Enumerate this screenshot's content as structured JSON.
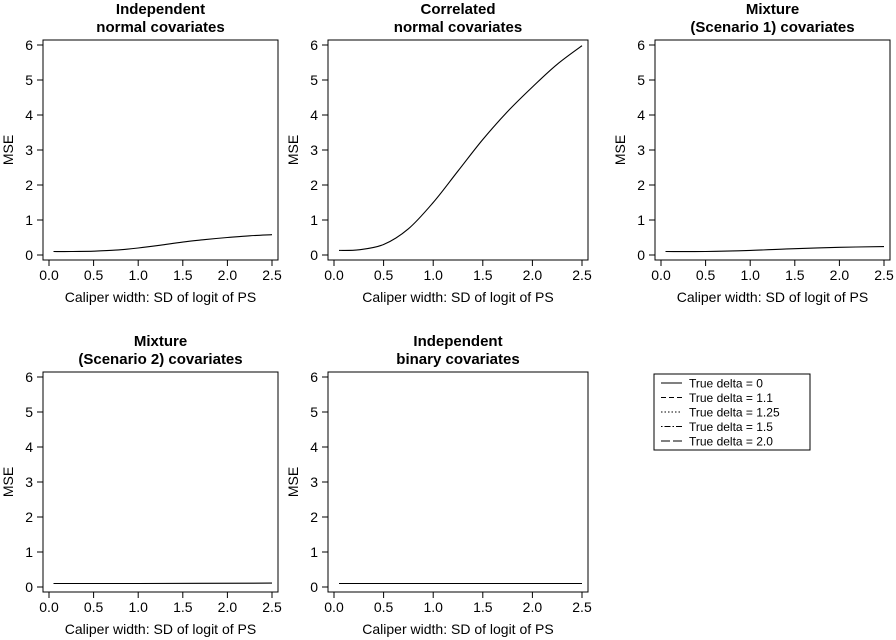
{
  "chart_data": [
    {
      "type": "line",
      "title": [
        "Independent",
        "normal covariates"
      ],
      "xlabel": "Caliper width: SD of logit of PS",
      "ylabel": "MSE",
      "xlim": [
        0.05,
        2.5
      ],
      "ylim": [
        0,
        6
      ],
      "xticks": [
        "0.0",
        "0.5",
        "1.0",
        "1.5",
        "2.0",
        "2.5"
      ],
      "yticks": [
        "0",
        "1",
        "2",
        "3",
        "4",
        "5",
        "6"
      ],
      "x": [
        0.05,
        0.25,
        0.5,
        0.75,
        1.0,
        1.25,
        1.5,
        1.75,
        2.0,
        2.25,
        2.5
      ],
      "series": [
        {
          "values": [
            0.1,
            0.1,
            0.11,
            0.14,
            0.2,
            0.28,
            0.37,
            0.44,
            0.5,
            0.55,
            0.58
          ]
        }
      ]
    },
    {
      "type": "line",
      "title": [
        "Correlated",
        "normal covariates"
      ],
      "xlabel": "Caliper width: SD of logit of PS",
      "ylabel": "MSE",
      "xlim": [
        0.05,
        2.5
      ],
      "ylim": [
        0,
        6
      ],
      "xticks": [
        "0.0",
        "0.5",
        "1.0",
        "1.5",
        "2.0",
        "2.5"
      ],
      "yticks": [
        "0",
        "1",
        "2",
        "3",
        "4",
        "5",
        "6"
      ],
      "x": [
        0.05,
        0.25,
        0.5,
        0.75,
        1.0,
        1.25,
        1.5,
        1.75,
        2.0,
        2.25,
        2.5
      ],
      "series": [
        {
          "values": [
            0.13,
            0.15,
            0.3,
            0.75,
            1.5,
            2.4,
            3.3,
            4.1,
            4.8,
            5.45,
            5.98
          ]
        }
      ]
    },
    {
      "type": "line",
      "title": [
        "Mixture",
        "(Scenario 1) covariates"
      ],
      "xlabel": "Caliper width: SD of logit of PS",
      "ylabel": "MSE",
      "xlim": [
        0.05,
        2.5
      ],
      "ylim": [
        0,
        6
      ],
      "xticks": [
        "0.0",
        "0.5",
        "1.0",
        "1.5",
        "2.0",
        "2.5"
      ],
      "yticks": [
        "0",
        "1",
        "2",
        "3",
        "4",
        "5",
        "6"
      ],
      "x": [
        0.05,
        0.5,
        1.0,
        1.5,
        2.0,
        2.5
      ],
      "series": [
        {
          "values": [
            0.1,
            0.1,
            0.13,
            0.18,
            0.22,
            0.24
          ]
        }
      ]
    },
    {
      "type": "line",
      "title": [
        "Mixture",
        "(Scenario 2) covariates"
      ],
      "xlabel": "Caliper width: SD of logit of PS",
      "ylabel": "MSE",
      "xlim": [
        0.05,
        2.5
      ],
      "ylim": [
        0,
        6
      ],
      "xticks": [
        "0.0",
        "0.5",
        "1.0",
        "1.5",
        "2.0",
        "2.5"
      ],
      "yticks": [
        "0",
        "1",
        "2",
        "3",
        "4",
        "5",
        "6"
      ],
      "x": [
        0.05,
        1.0,
        2.5
      ],
      "series": [
        {
          "values": [
            0.1,
            0.1,
            0.11
          ]
        }
      ]
    },
    {
      "type": "line",
      "title": [
        "Independent",
        "binary covariates"
      ],
      "xlabel": "Caliper width: SD of logit of PS",
      "ylabel": "MSE",
      "xlim": [
        0.05,
        2.5
      ],
      "ylim": [
        0,
        6
      ],
      "xticks": [
        "0.0",
        "0.5",
        "1.0",
        "1.5",
        "2.0",
        "2.5"
      ],
      "yticks": [
        "0",
        "1",
        "2",
        "3",
        "4",
        "5",
        "6"
      ],
      "x": [
        0.05,
        1.0,
        2.5
      ],
      "series": [
        {
          "values": [
            0.1,
            0.1,
            0.1
          ]
        }
      ]
    }
  ],
  "legend": {
    "placement": "right of bottom row",
    "items": [
      {
        "label": "True delta = 0",
        "dash": "solid"
      },
      {
        "label": "True delta = 1.1",
        "dash": "dashed"
      },
      {
        "label": "True delta = 1.25",
        "dash": "dotted"
      },
      {
        "label": "True delta = 1.5",
        "dash": "dotdash"
      },
      {
        "label": "True delta = 2.0",
        "dash": "longdash"
      }
    ]
  }
}
